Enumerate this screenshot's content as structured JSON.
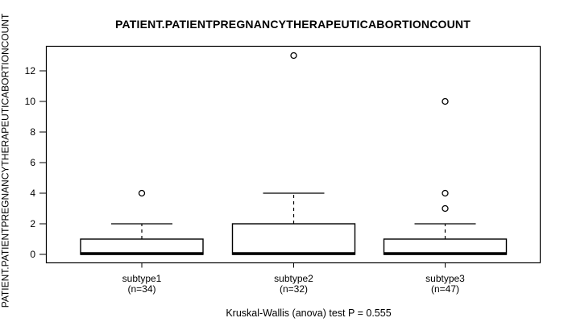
{
  "figure": {
    "background": "#ffffff",
    "foreground": "#000000"
  },
  "chart_data": {
    "type": "boxplot",
    "title": "PATIENT.PATIENTPREGNANCYTHERAPEUTICABORTIONCOUNT",
    "ylabel": "PATIENT.PATIENTPREGNANCYTHERAPEUTICABORTIONCOUNT",
    "xlabel": "",
    "footer": "Kruskal-Wallis (anova) test P = 0.555",
    "ylim": [
      0,
      13.5
    ],
    "yticks": [
      0,
      2,
      4,
      6,
      8,
      10,
      12
    ],
    "grid": false,
    "legend": false,
    "groups": [
      {
        "label": "subtype1",
        "n_label": "(n=34)",
        "n": 34,
        "whisker_low": 0,
        "q1": 0,
        "median": 0,
        "q3": 1,
        "whisker_high": 2,
        "outliers": [
          4
        ]
      },
      {
        "label": "subtype2",
        "n_label": "(n=32)",
        "n": 32,
        "whisker_low": 0,
        "q1": 0,
        "median": 0,
        "q3": 2,
        "whisker_high": 4,
        "outliers": [
          13
        ]
      },
      {
        "label": "subtype3",
        "n_label": "(n=47)",
        "n": 47,
        "whisker_low": 0,
        "q1": 0,
        "median": 0,
        "q3": 1,
        "whisker_high": 2,
        "outliers": [
          3,
          4,
          10
        ]
      }
    ]
  }
}
